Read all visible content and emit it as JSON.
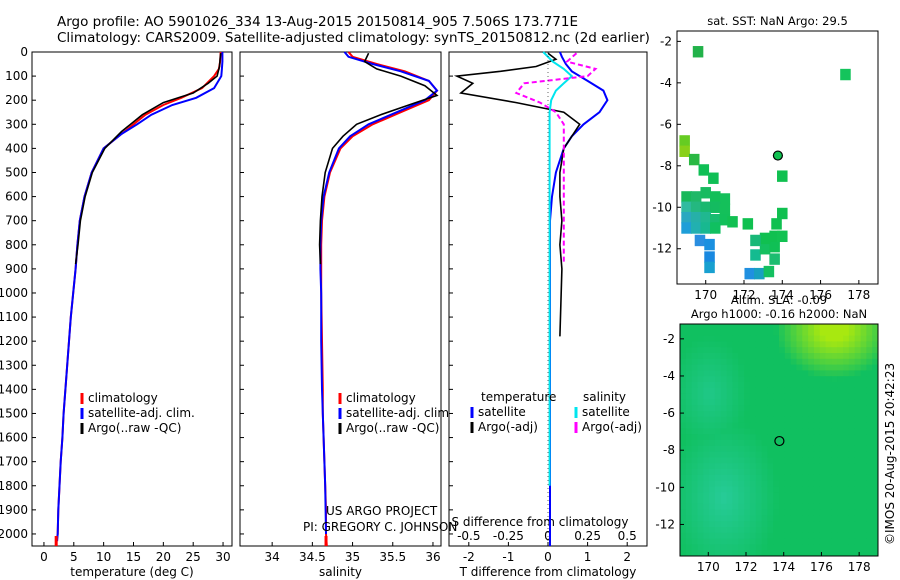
{
  "header": {
    "line1": "Argo profile: AO 5901026_334 13-Aug-2015 20150814_905 7.506S 173.771E",
    "line2": "Climatology: CARS2009. Satellite-adjusted climatology: synTS_20150812.nc (2d earlier)"
  },
  "colors": {
    "climatology": "#ff0000",
    "satellite": "#0000ff",
    "argo": "#000000",
    "satellite_salinity": "#00e5ee",
    "argo_salinity_adj": "#ff00ff"
  },
  "credit": {
    "line1": "US ARGO PROJECT",
    "line2": "PI: GREGORY C. JOHNSON"
  },
  "watermark": "©IMOS 20-Aug-2015 20:42:23",
  "chart_data": [
    {
      "type": "line",
      "xlabel": "temperature (deg C)",
      "ylabel": "",
      "xlim": [
        -2,
        31.5
      ],
      "ylim": [
        2050,
        0
      ],
      "xticks": [
        0,
        5,
        10,
        15,
        20,
        25,
        30
      ],
      "yticks": [
        0,
        100,
        200,
        300,
        400,
        500,
        600,
        700,
        800,
        900,
        1000,
        1100,
        1200,
        1300,
        1400,
        1500,
        1600,
        1700,
        1800,
        1900,
        2000
      ],
      "legend": [
        "climatology",
        "satellite-adj. clim.",
        "Argo(..raw -QC)"
      ],
      "series": [
        {
          "name": "climatology",
          "color": "#ff0000",
          "x": [
            29.6,
            29.5,
            29.3,
            28.5,
            26.5,
            23,
            20,
            17,
            15,
            13,
            10,
            8,
            6.8,
            6,
            5.6,
            5.3,
            4.9,
            4.5,
            4.2,
            3.9,
            3.6,
            3.3,
            3.1,
            2.8,
            2.6,
            2.4,
            2.3,
            2.1,
            2.05
          ],
          "y": [
            0,
            40,
            70,
            100,
            150,
            190,
            220,
            260,
            300,
            340,
            400,
            500,
            600,
            700,
            800,
            900,
            1000,
            1100,
            1200,
            1300,
            1400,
            1500,
            1600,
            1700,
            1800,
            1900,
            2000,
            2030,
            2050
          ]
        },
        {
          "name": "satellite-adj. clim.",
          "color": "#0000ff",
          "x": [
            29.9,
            29.9,
            29.8,
            29.7,
            28.5,
            25.5,
            21.5,
            18,
            15.6,
            13,
            10,
            8,
            6.8,
            6,
            5.6,
            5.3,
            4.9,
            4.5,
            4.2,
            3.9,
            3.6,
            3.3,
            3.1,
            2.8,
            2.6,
            2.4,
            2.3,
            2.2
          ],
          "y": [
            0,
            40,
            70,
            100,
            150,
            190,
            220,
            260,
            300,
            340,
            400,
            500,
            600,
            700,
            800,
            900,
            1000,
            1100,
            1200,
            1300,
            1400,
            1500,
            1600,
            1700,
            1800,
            1900,
            2000,
            2030
          ]
        },
        {
          "name": "Argo(..raw -QC)",
          "color": "#000000",
          "x": [
            29.6,
            29.5,
            29.4,
            29,
            27.5,
            25,
            22.5,
            20,
            16.5,
            13,
            10.2,
            8.1,
            6.9,
            6.1,
            5.7,
            5.3
          ],
          "y": [
            5,
            30,
            60,
            100,
            130,
            170,
            190,
            210,
            260,
            330,
            400,
            500,
            600,
            700,
            800,
            880
          ]
        }
      ]
    },
    {
      "type": "line",
      "xlabel": "salinity",
      "ylabel": "",
      "xlim": [
        33.6,
        36.1
      ],
      "ylim": [
        2050,
        0
      ],
      "xticks": [
        34,
        34.5,
        35,
        35.5,
        36
      ],
      "legend": [
        "climatology",
        "satellite-adj. clim.",
        "Argo(..raw -QC)"
      ],
      "series": [
        {
          "name": "climatology",
          "color": "#ff0000",
          "x": [
            34.95,
            35,
            35.3,
            35.65,
            35.95,
            36.05,
            35.95,
            35.6,
            35.25,
            35,
            34.85,
            34.72,
            34.65,
            34.62,
            34.61,
            34.61,
            34.61,
            34.62,
            34.63,
            34.63,
            34.64,
            34.65,
            34.66,
            34.67,
            34.67,
            34.68
          ],
          "y": [
            0,
            20,
            50,
            80,
            120,
            160,
            200,
            250,
            300,
            350,
            400,
            500,
            600,
            700,
            800,
            900,
            1000,
            1200,
            1400,
            1500,
            1600,
            1700,
            1800,
            1900,
            2000,
            2050
          ]
        },
        {
          "name": "satellite-adj. clim.",
          "color": "#0000ff",
          "x": [
            34.9,
            34.95,
            35.25,
            35.6,
            35.95,
            36.05,
            35.9,
            35.55,
            35.2,
            34.97,
            34.83,
            34.71,
            34.64,
            34.61,
            34.6,
            34.6,
            34.61,
            34.61,
            34.62,
            34.63,
            34.64,
            34.65,
            34.66,
            34.67
          ],
          "y": [
            0,
            20,
            50,
            80,
            120,
            160,
            200,
            250,
            300,
            350,
            400,
            500,
            600,
            700,
            800,
            900,
            1000,
            1200,
            1400,
            1500,
            1600,
            1700,
            1800,
            2000
          ]
        },
        {
          "name": "Argo(..raw -QC)",
          "color": "#000000",
          "x": [
            35.2,
            35.15,
            35.3,
            35.6,
            35.9,
            36.05,
            35.7,
            35.35,
            35.05,
            34.88,
            34.75,
            34.66,
            34.62,
            34.6,
            34.59,
            34.6
          ],
          "y": [
            5,
            40,
            70,
            100,
            140,
            180,
            220,
            260,
            300,
            350,
            400,
            500,
            600,
            700,
            800,
            880
          ]
        }
      ]
    },
    {
      "type": "line",
      "xlabel": "T difference from climatology",
      "xlabel_top": "S difference from climatology",
      "xlim": [
        -2.5,
        2.5
      ],
      "ylim": [
        2050,
        0
      ],
      "xticks": [
        -2,
        -1,
        0,
        1,
        2
      ],
      "xticks_top": [
        "-0.5",
        "-0.25",
        "0",
        "0.25",
        "0.5"
      ],
      "legend_titles": [
        "temperature",
        "salinity"
      ],
      "legend": [
        "satellite",
        "Argo(-adj)",
        "satellite",
        "Argo(-adj)"
      ],
      "series": [
        {
          "name": "satellite",
          "quantity": "temperature",
          "color": "#0000ff",
          "x": [
            0.3,
            0.35,
            0.45,
            0.6,
            1,
            1.4,
            1.5,
            1.3,
            0.9,
            0.6,
            0.4,
            0.2,
            0.1,
            0.05,
            0.05,
            0.05,
            0.05,
            0.05,
            0.05,
            0.05,
            0.05,
            0.05,
            0.05
          ],
          "y": [
            0,
            20,
            50,
            80,
            120,
            160,
            200,
            250,
            300,
            350,
            400,
            500,
            600,
            700,
            800,
            900,
            1000,
            1200,
            1400,
            1600,
            1800,
            2000,
            2050
          ]
        },
        {
          "name": "Argo(-adj)",
          "quantity": "temperature",
          "color": "#000000",
          "x": [
            0,
            0.2,
            -0.3,
            -1.2,
            -2.3,
            -1.9,
            -2.2,
            -0.8,
            0.4,
            0.8,
            0.6,
            0.4,
            0.3,
            0.3,
            0.35,
            0.3,
            0.35,
            0.3
          ],
          "y": [
            5,
            30,
            60,
            80,
            100,
            130,
            170,
            210,
            250,
            300,
            350,
            400,
            500,
            600,
            700,
            800,
            900,
            1180
          ]
        },
        {
          "name": "satellite",
          "quantity": "salinity",
          "color": "#00e5ee",
          "x": [
            -0.03,
            0.03,
            0.1,
            0.15,
            0.1,
            0.05,
            0.02,
            0.01,
            0.01,
            0.01,
            0.01,
            0.01,
            0.01,
            0.01,
            0.01,
            0.01,
            0.01,
            0.01,
            0.01,
            0.01,
            0.01,
            0.01,
            0.01,
            0.01
          ],
          "y": [
            0,
            40,
            70,
            100,
            130,
            160,
            200,
            250,
            300,
            400,
            500,
            600,
            700,
            800,
            900,
            1000,
            1100,
            1200,
            1300,
            1400,
            1500,
            1600,
            1700,
            1800
          ]
        },
        {
          "name": "Argo(-adj)",
          "quantity": "salinity",
          "color": "#ff00ff",
          "x": [
            0.18,
            0.12,
            0.3,
            0.25,
            -0.15,
            -0.2,
            -0.05,
            0.05,
            0.1,
            0.1,
            0.1,
            0.1,
            0.1,
            0.1,
            0.1
          ],
          "y": [
            5,
            40,
            70,
            100,
            130,
            170,
            210,
            250,
            300,
            400,
            500,
            600,
            700,
            800,
            880
          ]
        }
      ]
    },
    {
      "type": "heatmap",
      "title": "sat. SST: NaN Argo: 29.5",
      "xlim": [
        168.5,
        179
      ],
      "ylim": [
        -13.7,
        -1.5
      ],
      "xticks": [
        170,
        172,
        174,
        176,
        178
      ],
      "yticks": [
        -2,
        -4,
        -6,
        -8,
        -10,
        -12
      ],
      "profile_location": [
        173.771,
        -7.506
      ],
      "cells": [
        {
          "lon": 169.6,
          "lat": -2.5,
          "c": "#22b24a"
        },
        {
          "lon": 177.3,
          "lat": -3.6,
          "c": "#14c45c"
        },
        {
          "lon": 168.9,
          "lat": -6.8,
          "c": "#66cc22"
        },
        {
          "lon": 168.9,
          "lat": -7.3,
          "c": "#88d019"
        },
        {
          "lon": 169.4,
          "lat": -7.7,
          "c": "#2ab843"
        },
        {
          "lon": 169.9,
          "lat": -8.2,
          "c": "#0fbf55"
        },
        {
          "lon": 170.4,
          "lat": -8.6,
          "c": "#0fbf55"
        },
        {
          "lon": 174,
          "lat": -8.5,
          "c": "#10c050"
        },
        {
          "lon": 169.0,
          "lat": -9.5,
          "c": "#18b85a"
        },
        {
          "lon": 169.5,
          "lat": -9.5,
          "c": "#20b868"
        },
        {
          "lon": 170.0,
          "lat": -9.3,
          "c": "#18bb60"
        },
        {
          "lon": 170.5,
          "lat": -9.5,
          "c": "#12bf58"
        },
        {
          "lon": 171.0,
          "lat": -9.6,
          "c": "#14c05a"
        },
        {
          "lon": 169.0,
          "lat": -10.0,
          "c": "#30bba0"
        },
        {
          "lon": 169.5,
          "lat": -10.0,
          "c": "#24b880"
        },
        {
          "lon": 170.0,
          "lat": -10.0,
          "c": "#1ab870"
        },
        {
          "lon": 170.5,
          "lat": -10.0,
          "c": "#14bb60"
        },
        {
          "lon": 171.0,
          "lat": -10.1,
          "c": "#14c05a"
        },
        {
          "lon": 169.0,
          "lat": -10.5,
          "c": "#2aa8c0"
        },
        {
          "lon": 169.5,
          "lat": -10.5,
          "c": "#26b0a8"
        },
        {
          "lon": 170.0,
          "lat": -10.5,
          "c": "#20b890"
        },
        {
          "lon": 170.5,
          "lat": -10.6,
          "c": "#18bc70"
        },
        {
          "lon": 171.0,
          "lat": -10.6,
          "c": "#12c05a"
        },
        {
          "lon": 169.0,
          "lat": -11.0,
          "c": "#1e9ed8"
        },
        {
          "lon": 169.5,
          "lat": -11.0,
          "c": "#22b0b0"
        },
        {
          "lon": 170.0,
          "lat": -11.0,
          "c": "#18b890"
        },
        {
          "lon": 170.5,
          "lat": -11.0,
          "c": "#10c060"
        },
        {
          "lon": 169.7,
          "lat": -11.6,
          "c": "#2a8ee0"
        },
        {
          "lon": 170.2,
          "lat": -11.8,
          "c": "#1a90e0"
        },
        {
          "lon": 170.2,
          "lat": -12.4,
          "c": "#1888e0"
        },
        {
          "lon": 170.2,
          "lat": -12.9,
          "c": "#18a0d0"
        },
        {
          "lon": 172.3,
          "lat": -13.2,
          "c": "#2090e0"
        },
        {
          "lon": 172.8,
          "lat": -13.2,
          "c": "#18a0c0"
        },
        {
          "lon": 173.3,
          "lat": -13.1,
          "c": "#14c060"
        },
        {
          "lon": 172.6,
          "lat": -12.3,
          "c": "#14bb90"
        },
        {
          "lon": 173.1,
          "lat": -12.0,
          "c": "#14c060"
        },
        {
          "lon": 173.6,
          "lat": -11.9,
          "c": "#10c055"
        },
        {
          "lon": 173.6,
          "lat": -12.5,
          "c": "#1cbd70"
        },
        {
          "lon": 173.1,
          "lat": -11.5,
          "c": "#10c050"
        },
        {
          "lon": 173.6,
          "lat": -11.4,
          "c": "#10c050"
        },
        {
          "lon": 174.0,
          "lat": -11.4,
          "c": "#12c252"
        },
        {
          "lon": 172.6,
          "lat": -11.6,
          "c": "#18b878"
        },
        {
          "lon": 172.2,
          "lat": -10.8,
          "c": "#10c050"
        },
        {
          "lon": 173.7,
          "lat": -10.8,
          "c": "#10c050"
        },
        {
          "lon": 174.0,
          "lat": -10.3,
          "c": "#10c050"
        },
        {
          "lon": 171.4,
          "lat": -10.7,
          "c": "#12c052"
        }
      ]
    },
    {
      "type": "heatmap",
      "title_line1": "Altim. SLA: -0.09",
      "title_line2": "Argo h1000: -0.16 h2000: NaN",
      "xlim": [
        168.5,
        179
      ],
      "ylim": [
        -13.7,
        -1.2
      ],
      "xticks": [
        170,
        172,
        174,
        176,
        178
      ],
      "yticks": [
        -2,
        -4,
        -6,
        -8,
        -10,
        -12
      ],
      "profile_location": [
        173.771,
        -7.506
      ],
      "colors": {
        "base": "#10c060",
        "high": "#a8e810",
        "low": "#30d0b0"
      }
    }
  ]
}
